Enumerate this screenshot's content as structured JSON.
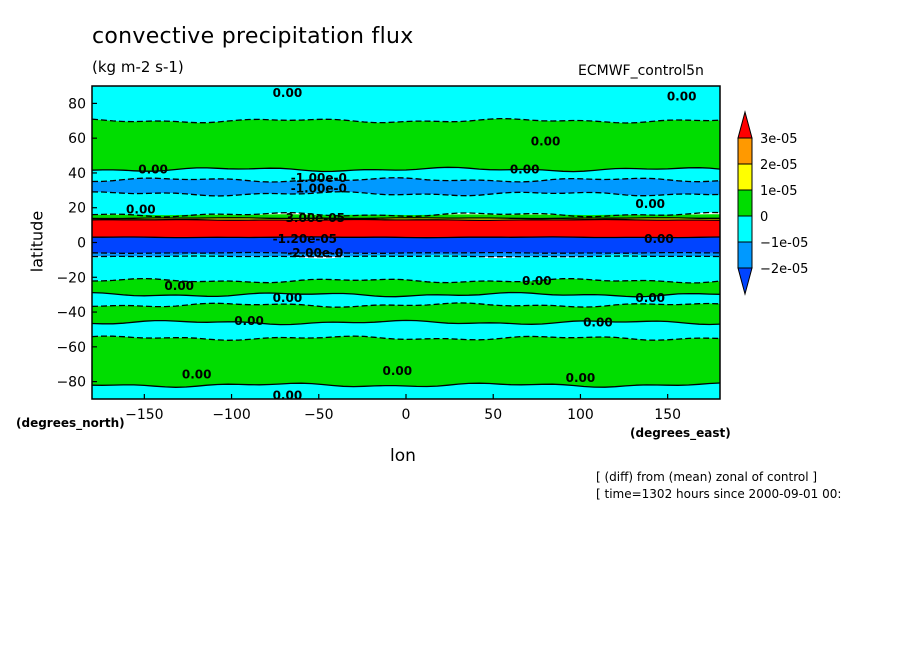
{
  "chart_data": {
    "type": "heatmap",
    "title": "convective precipitation flux",
    "units": "(kg m-2 s-1)",
    "source_label": "ECMWF_control5n",
    "xlabel": "lon",
    "ylabel": "latitude",
    "x_unit": "(degrees_east)",
    "y_unit": "(degrees_north)",
    "xlim": [
      -180,
      180
    ],
    "ylim": [
      -90,
      90
    ],
    "x_ticks": [
      -150,
      -100,
      -50,
      0,
      50,
      100,
      150
    ],
    "y_ticks": [
      80,
      60,
      40,
      20,
      0,
      -20,
      -40,
      -60,
      -80
    ],
    "colorbar": {
      "labels": [
        "3e-05",
        "2e-05",
        "1e-05",
        "0",
        "-1e-05",
        "-2e-05"
      ],
      "bins": [
        {
          "lo": 3e-05,
          "hi": null,
          "color": "#ff0000"
        },
        {
          "lo": 2e-05,
          "hi": 3e-05,
          "color": "#ff9900"
        },
        {
          "lo": 1e-05,
          "hi": 2e-05,
          "color": "#ffff00"
        },
        {
          "lo": 0,
          "hi": 1e-05,
          "color": "#00dd00"
        },
        {
          "lo": -1e-05,
          "hi": 0,
          "color": "#00ffff"
        },
        {
          "lo": -2e-05,
          "hi": -1e-05,
          "color": "#0099ff"
        },
        {
          "lo": null,
          "hi": -2e-05,
          "color": "#0044ff"
        }
      ]
    },
    "bands": [
      {
        "lat_top": 90,
        "lat_bottom": 70,
        "value_bin": "-1e-05..0"
      },
      {
        "lat_top": 70,
        "lat_bottom": 42,
        "value_bin": "0..1e-05"
      },
      {
        "lat_top": 42,
        "lat_bottom": 36,
        "value_bin": "-1e-05..0"
      },
      {
        "lat_top": 36,
        "lat_bottom": 28,
        "value_bin": "-2e-05..-1e-05"
      },
      {
        "lat_top": 28,
        "lat_bottom": 16,
        "value_bin": "-1e-05..0"
      },
      {
        "lat_top": 16,
        "lat_bottom": 14,
        "value_bin": "0..1e-05"
      },
      {
        "lat_top": 14,
        "lat_bottom": 13,
        "value_bin": "1e-05..2e-05"
      },
      {
        "lat_top": 13,
        "lat_bottom": 3,
        "value_bin": ">3e-05"
      },
      {
        "lat_top": 3,
        "lat_bottom": -6,
        "value_bin": "<-2e-05"
      },
      {
        "lat_top": -6,
        "lat_bottom": -8,
        "value_bin": "-2e-05..-1e-05"
      },
      {
        "lat_top": -8,
        "lat_bottom": -22,
        "value_bin": "-1e-05..0"
      },
      {
        "lat_top": -22,
        "lat_bottom": -30,
        "value_bin": "0..1e-05"
      },
      {
        "lat_top": -30,
        "lat_bottom": -36,
        "value_bin": "-1e-05..0"
      },
      {
        "lat_top": -36,
        "lat_bottom": -46,
        "value_bin": "0..1e-05"
      },
      {
        "lat_top": -46,
        "lat_bottom": -55,
        "value_bin": "-1e-05..0"
      },
      {
        "lat_top": -55,
        "lat_bottom": -82,
        "value_bin": "0..1e-05"
      },
      {
        "lat_top": -82,
        "lat_bottom": -90,
        "value_bin": "-1e-05..0"
      }
    ],
    "contour_labels": [
      {
        "text": "0.00",
        "lon": -68,
        "lat": 86
      },
      {
        "text": "0.00",
        "lon": 158,
        "lat": 84
      },
      {
        "text": "0.00",
        "lon": 80,
        "lat": 58
      },
      {
        "text": "0.00",
        "lon": -145,
        "lat": 42
      },
      {
        "text": "0.00",
        "lon": 68,
        "lat": 42
      },
      {
        "text": "-1.00e-0",
        "lon": -50,
        "lat": 37
      },
      {
        "text": "-1.00e-0",
        "lon": -50,
        "lat": 31
      },
      {
        "text": "0.00",
        "lon": -152,
        "lat": 19
      },
      {
        "text": "0.00",
        "lon": 140,
        "lat": 22
      },
      {
        "text": "3.00e-05",
        "lon": -52,
        "lat": 14
      },
      {
        "text": "-1.20e-05",
        "lon": -58,
        "lat": 2
      },
      {
        "text": "0.00",
        "lon": 145,
        "lat": 2
      },
      {
        "text": "-2.00e-0",
        "lon": -52,
        "lat": -6
      },
      {
        "text": "0.00",
        "lon": 75,
        "lat": -22
      },
      {
        "text": "0.00",
        "lon": -130,
        "lat": -25
      },
      {
        "text": "0.00",
        "lon": -68,
        "lat": -32
      },
      {
        "text": "0.00",
        "lon": 140,
        "lat": -32
      },
      {
        "text": "0.00",
        "lon": -90,
        "lat": -45
      },
      {
        "text": "0.00",
        "lon": 110,
        "lat": -46
      },
      {
        "text": "0.00",
        "lon": -120,
        "lat": -76
      },
      {
        "text": "0.00",
        "lon": -5,
        "lat": -74
      },
      {
        "text": "0.00",
        "lon": 100,
        "lat": -78
      },
      {
        "text": "0.00",
        "lon": -68,
        "lat": -88
      }
    ]
  },
  "notes": [
    "[ (diff) from (mean) zonal of control ]",
    "[ time=1302 hours since 2000-09-01 00:"
  ]
}
